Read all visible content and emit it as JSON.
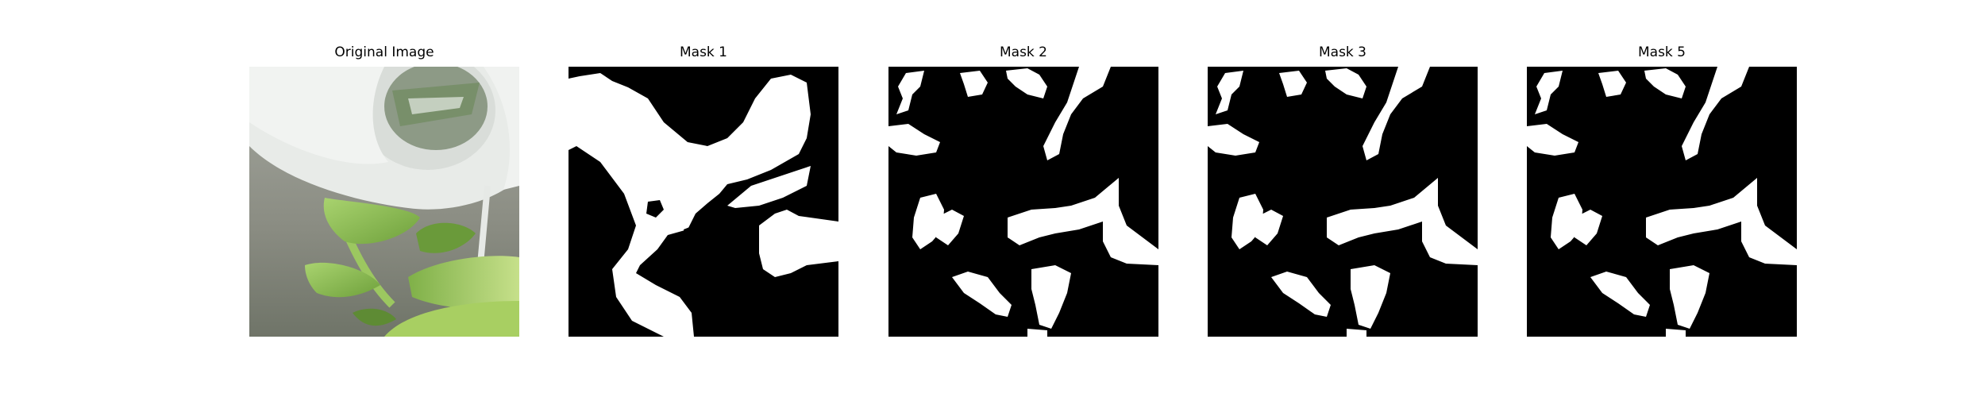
{
  "panels": [
    {
      "title": "Original Image",
      "kind": "photo"
    },
    {
      "title": "Mask 1",
      "kind": "mask"
    },
    {
      "title": "Mask 2",
      "kind": "mask"
    },
    {
      "title": "Mask 3",
      "kind": "mask"
    },
    {
      "title": "Mask 5",
      "kind": "mask"
    }
  ],
  "colors": {
    "mask_background": "#000000",
    "mask_foreground": "#ffffff",
    "photo_background": "#8a8d82",
    "leaf_green": "#8fc25a",
    "container_white": "#eef0ee"
  }
}
